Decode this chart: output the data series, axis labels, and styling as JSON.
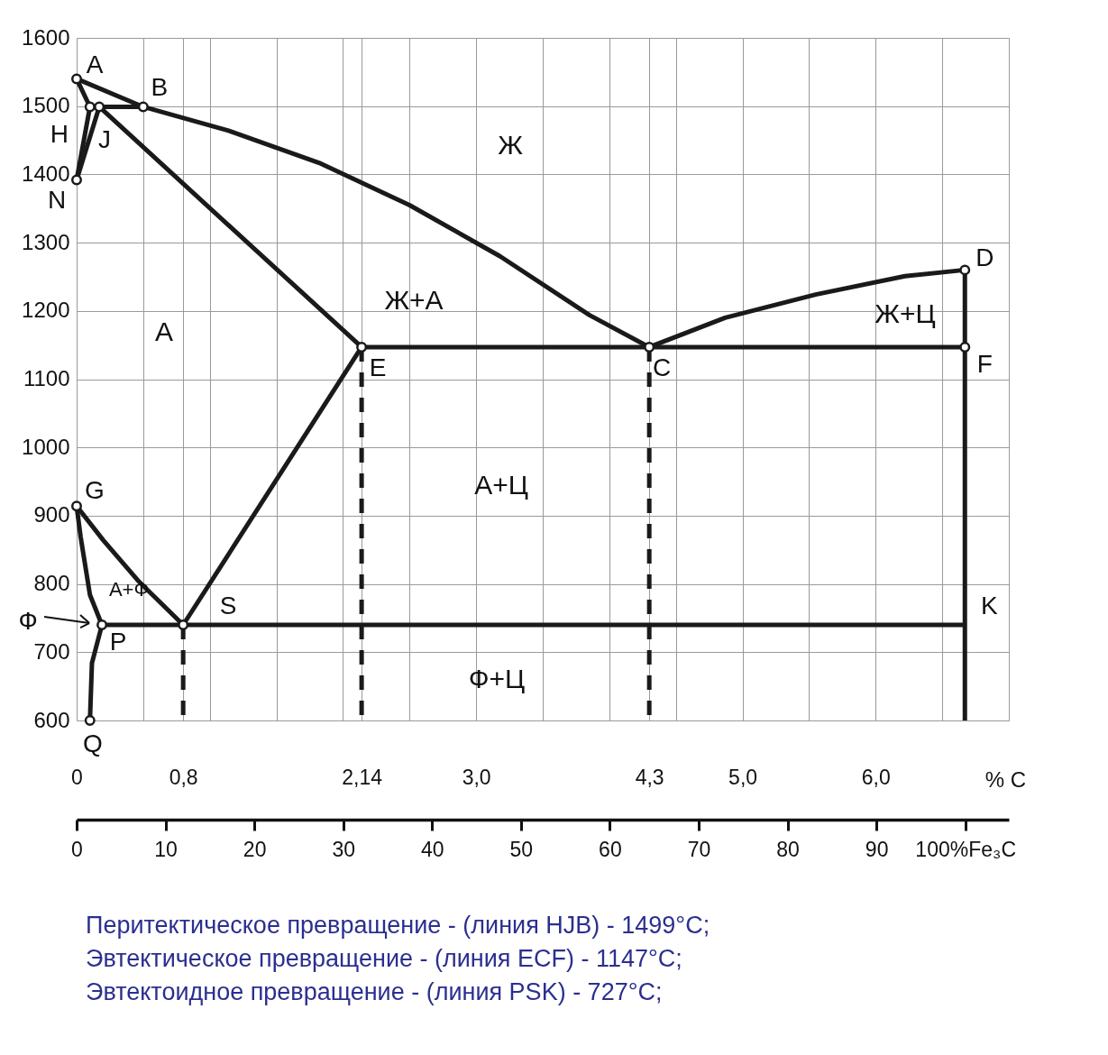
{
  "chart_data": {
    "type": "line",
    "xlabel": "% C",
    "xlim": [
      0,
      7
    ],
    "xticks": [
      {
        "value": 0,
        "label": "0"
      },
      {
        "value": 0.5,
        "label": null
      },
      {
        "value": 0.8,
        "label": "0,8"
      },
      {
        "value": 1,
        "label": null
      },
      {
        "value": 1.5,
        "label": null
      },
      {
        "value": 2,
        "label": null
      },
      {
        "value": 2.14,
        "label": "2,14"
      },
      {
        "value": 2.5,
        "label": null
      },
      {
        "value": 3,
        "label": "3,0"
      },
      {
        "value": 3.5,
        "label": null
      },
      {
        "value": 4,
        "label": null
      },
      {
        "value": 4.3,
        "label": "4,3"
      },
      {
        "value": 4.5,
        "label": null
      },
      {
        "value": 5,
        "label": "5,0"
      },
      {
        "value": 5.5,
        "label": null
      },
      {
        "value": 6,
        "label": "6,0"
      },
      {
        "value": 6.5,
        "label": null
      },
      {
        "value": 7,
        "label": null
      }
    ],
    "x2lim": [
      0,
      104.9
    ],
    "x2ticks": [
      0,
      10,
      20,
      30,
      40,
      50,
      60,
      70,
      80,
      90,
      {
        "value": 100,
        "label": "100%Fe₃C"
      }
    ],
    "ylim": [
      600,
      1600
    ],
    "yticks": [
      600,
      700,
      800,
      900,
      1000,
      1100,
      1200,
      1300,
      1400,
      1500,
      1600
    ],
    "grid": true,
    "series": [
      {
        "type": "line",
        "color": "#1a1a1a",
        "x": [
          0,
          0.5,
          1.14,
          1.82,
          2.5,
          3.18,
          3.85,
          4.3
        ],
        "values": [
          1540,
          1499,
          1464,
          1417,
          1355,
          1280,
          1194,
          1147
        ]
      },
      {
        "type": "line",
        "color": "#1a1a1a",
        "x": [
          4.3,
          4.87,
          5.55,
          6.22,
          6.67
        ],
        "values": [
          1147,
          1190,
          1224,
          1251,
          1260
        ]
      },
      {
        "type": "line",
        "color": "#1a1a1a",
        "x": [
          0,
          0.1,
          0
        ],
        "values": [
          1540,
          1499,
          1392
        ]
      },
      {
        "type": "line",
        "color": "#1a1a1a",
        "x": [
          0.1,
          0.5
        ],
        "values": [
          1499,
          1499
        ]
      },
      {
        "type": "line",
        "color": "#1a1a1a",
        "x": [
          0,
          0.17,
          2.14
        ],
        "values": [
          1392,
          1499,
          1147
        ]
      },
      {
        "type": "line",
        "color": "#1a1a1a",
        "x": [
          2.14,
          6.67
        ],
        "values": [
          1147,
          1147
        ]
      },
      {
        "type": "line",
        "color": "#1a1a1a",
        "x": [
          6.67,
          6.67
        ],
        "values": [
          1260,
          600
        ]
      },
      {
        "type": "line",
        "color": "#1a1a1a",
        "x": [
          2.14,
          0.8
        ],
        "values": [
          1147,
          740
        ]
      },
      {
        "type": "line",
        "color": "#1a1a1a",
        "x": [
          0.19,
          6.67
        ],
        "values": [
          740,
          740
        ]
      },
      {
        "type": "line",
        "color": "#1a1a1a",
        "x": [
          0,
          0.2,
          0.47,
          0.8
        ],
        "values": [
          914,
          864,
          803,
          740
        ]
      },
      {
        "type": "line",
        "color": "#1a1a1a",
        "x": [
          0,
          0.03,
          0.1,
          0.19
        ],
        "values": [
          914,
          869,
          784,
          740
        ]
      },
      {
        "type": "line",
        "color": "#1a1a1a",
        "x": [
          0.19,
          0.115,
          0.1
        ],
        "values": [
          740,
          684,
          600
        ]
      },
      {
        "type": "line",
        "color": "#1a1a1a",
        "line_style": "dashed",
        "x": [
          0.8,
          0.8
        ],
        "values": [
          740,
          600
        ]
      },
      {
        "type": "line",
        "color": "#1a1a1a",
        "line_style": "dashed",
        "x": [
          2.14,
          2.14
        ],
        "values": [
          1147,
          600
        ]
      },
      {
        "type": "line",
        "color": "#1a1a1a",
        "line_style": "dashed",
        "x": [
          4.3,
          4.3
        ],
        "values": [
          1147,
          600
        ]
      },
      {
        "type": "scatter",
        "marker": "circle",
        "color": "#1a1a1a",
        "x": [
          0,
          0.1,
          0.17,
          0.5,
          0,
          2.14,
          4.3,
          6.67,
          6.67,
          0,
          0.19,
          0.8,
          0.1
        ],
        "values": [
          1540,
          1499,
          1499,
          1499,
          1392,
          1147,
          1147,
          1260,
          1147,
          914,
          740,
          740,
          600
        ],
        "value_labels": [
          "A",
          "H",
          "J",
          "B",
          "N",
          "E",
          "C",
          "D",
          "F",
          "G",
          "P",
          "S",
          "Q"
        ]
      }
    ],
    "annotations": [
      "Ж",
      "Ж+А",
      "А",
      "А+Ц",
      "Ж+Ц",
      "А+Ф",
      "Ф+Ц",
      {
        "text": "K",
        "x": 6.67,
        "y": 740
      },
      {
        "text": "Ф",
        "x": 0.19,
        "y": 740
      },
      "Перитектическое превращение - (линия HJB) - 1499°C;",
      "Эвтектическое превращение - (линия ECF) - 1147°C;",
      "Эвтектоидное превращение - (линия PSK) - 727°C;"
    ]
  }
}
